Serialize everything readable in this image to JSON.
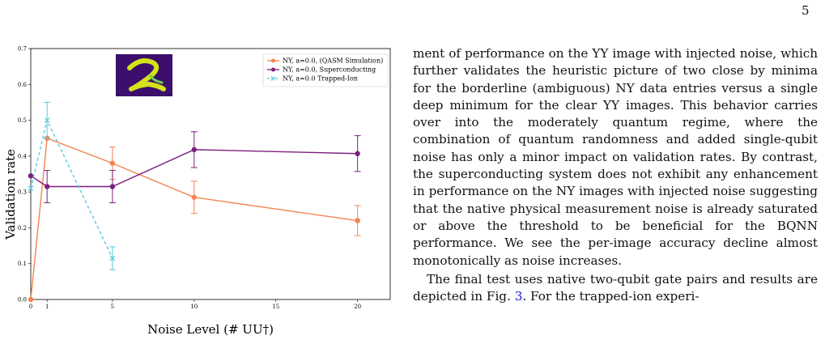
{
  "page_number": "5",
  "figure": {
    "chart_data": {
      "type": "line",
      "xlabel": "Noise Level (# UU†)",
      "ylabel": "Validation rate",
      "xlim": [
        0,
        22
      ],
      "ylim": [
        0,
        0.7
      ],
      "x_ticks": [
        "0",
        "1",
        "5",
        "10",
        "15",
        "20"
      ],
      "x_tick_values": [
        0,
        1,
        5,
        10,
        15,
        20
      ],
      "y_ticks": [
        "0.0",
        "0.1",
        "0.2",
        "0.3",
        "0.4",
        "0.5",
        "0.6",
        "0.7"
      ],
      "y_tick_values": [
        0,
        0.1,
        0.2,
        0.3,
        0.4,
        0.5,
        0.6,
        0.7
      ],
      "legend_position": "top-right",
      "inset_image": "handwritten digit 2 (MNIST)",
      "series": [
        {
          "name": "NY, a=0.0, (QASM Simulation)",
          "color": "#f4834f",
          "style": "solid",
          "marker": "circle",
          "x": [
            0,
            1,
            5,
            10,
            20
          ],
          "y": [
            0.0,
            0.45,
            0.38,
            0.285,
            0.22
          ],
          "err": [
            0,
            0,
            0.045,
            0.045,
            0.042
          ]
        },
        {
          "name": "NY, a=0.0, Superconducting",
          "color": "#7b1f7e",
          "style": "solid",
          "marker": "circle",
          "x": [
            0,
            1,
            5,
            10,
            20
          ],
          "y": [
            0.345,
            0.315,
            0.315,
            0.418,
            0.407
          ],
          "err": [
            0,
            0.045,
            0.045,
            0.05,
            0.05
          ]
        },
        {
          "name": "NY, a=0.0 Trapped-Ion",
          "color": "#5bc8e0",
          "style": "dashed",
          "marker": "x",
          "x": [
            0,
            1,
            5
          ],
          "y": [
            0.31,
            0.5,
            0.115
          ],
          "err": [
            0,
            0.05,
            0.032
          ]
        }
      ]
    }
  },
  "text": {
    "p1": "ment of performance on the YY image with injected noise, which further validates the heuristic picture of two close by minima for the borderline (ambiguous) NY data entries versus a single deep minimum for the clear YY images. This behavior carries over into the moderately quantum regime, where the combination of quantum randomness and added single-qubit noise has only a minor impact on validation rates. By contrast, the superconducting system does not exhibit any enhancement in performance on the NY images with injected noise suggesting that the native physical measurement noise is already saturated or above the threshold to be beneficial for the BQNN performance. We see the per-image accuracy decline almost monotonically as noise increases.",
    "p2_a": "The final test uses native two-qubit gate pairs and results are depicted in Fig. ",
    "p2_ref": "3",
    "p2_b": ". For the trapped-ion experi-"
  }
}
